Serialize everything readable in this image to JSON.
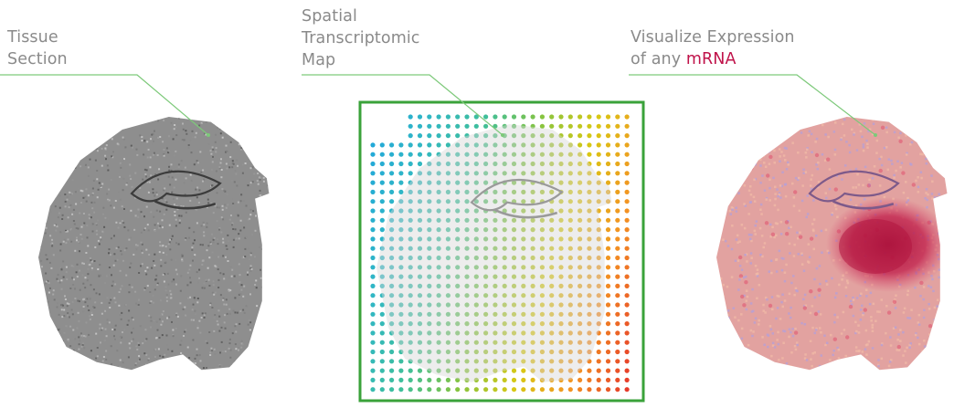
{
  "labels": {
    "tissue": {
      "line1": "Tissue",
      "line2": "Section"
    },
    "map": {
      "line1": "Spatial",
      "line2": "Transcriptomic",
      "line3": "Map"
    },
    "expression": {
      "line1": "Visualize Expression",
      "line2_prefix": "of any ",
      "line2_highlight": "mRNA"
    }
  },
  "colors": {
    "callout_line": "#7dc97a",
    "frame": "#3aa23a",
    "label_text": "#8a8a8a",
    "highlight": "#c0134a",
    "tissue_gray": "#8e8e8e",
    "tissue_pink": "#e2a2a0",
    "tissue_purple": "#b8a0d4",
    "expression_hotspot": "#b3153f",
    "spot_gradient": [
      "#1fa6dc",
      "#31b7c4",
      "#3fbf9a",
      "#86c440",
      "#d8c814",
      "#f39322",
      "#e63a2a"
    ]
  }
}
